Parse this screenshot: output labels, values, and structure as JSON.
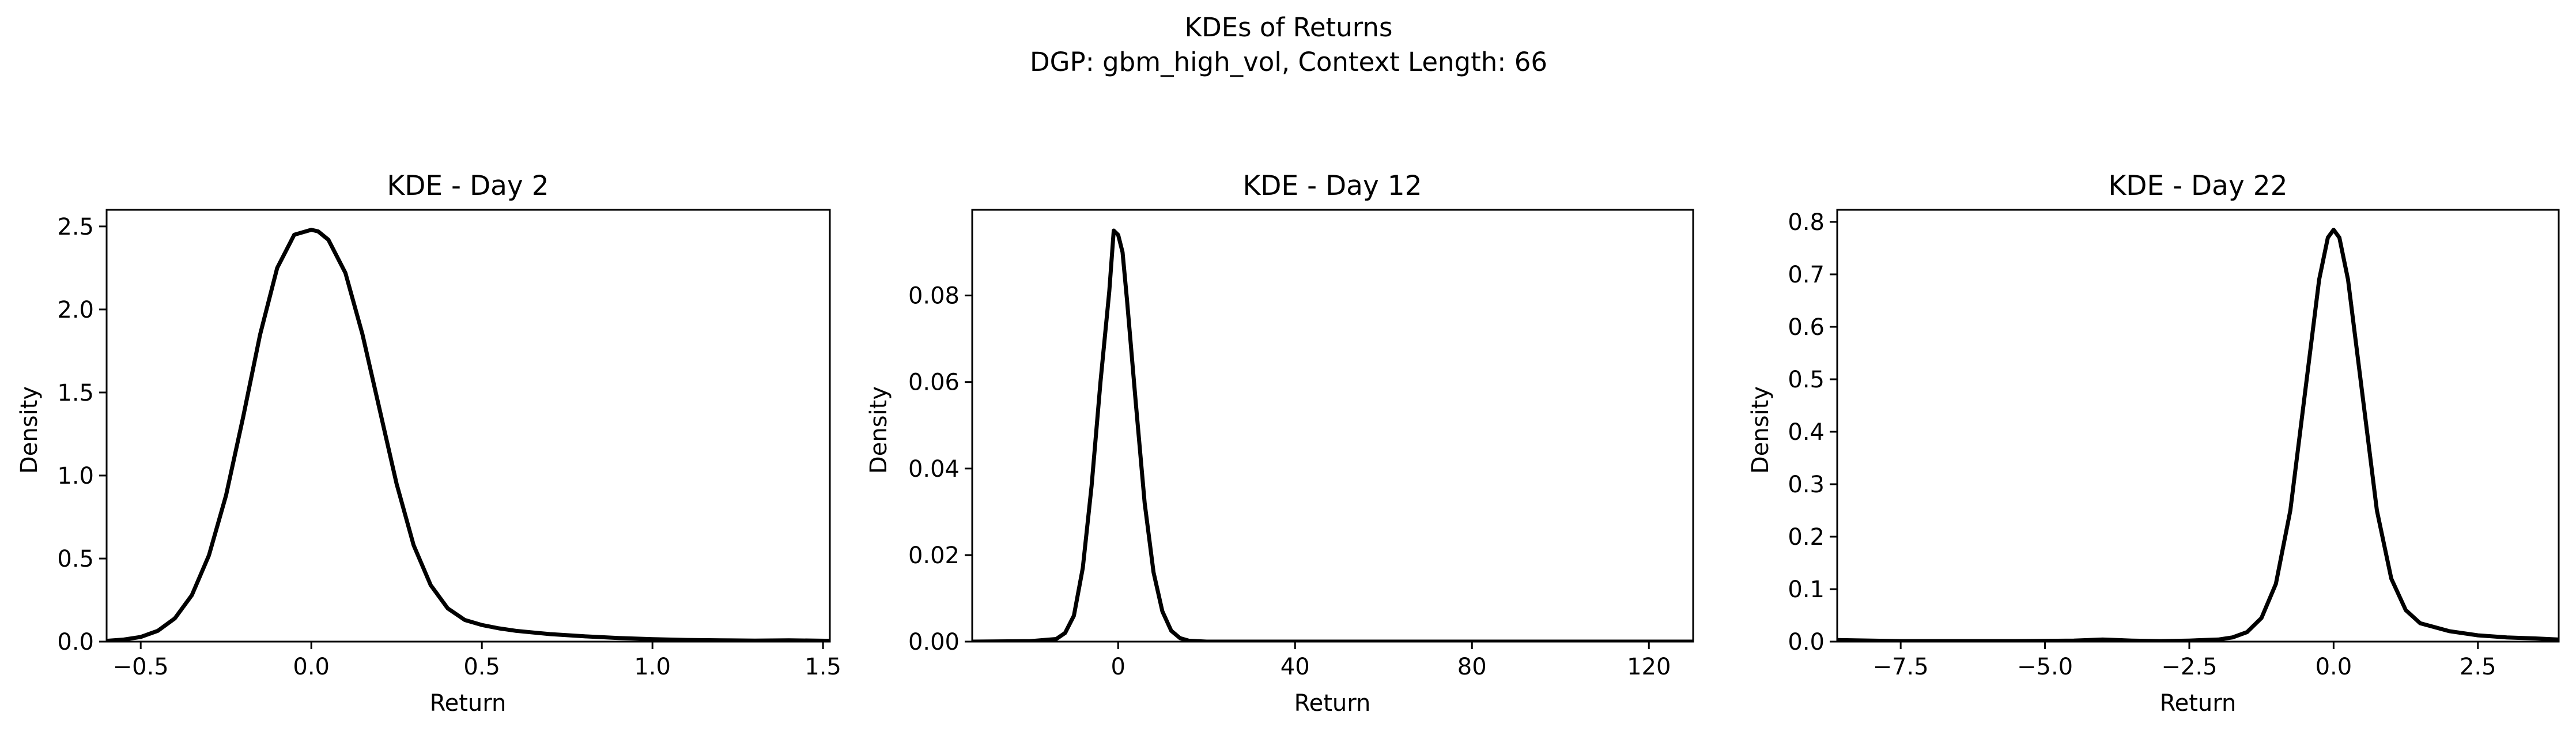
{
  "figure": {
    "suptitle_line1": "KDEs of Returns",
    "suptitle_line2": "DGP: gbm_high_vol, Context Length: 66"
  },
  "chart_data": [
    {
      "type": "line",
      "title": "KDE - Day 2",
      "xlabel": "Return",
      "ylabel": "Density",
      "xlim": [
        -0.6,
        1.52
      ],
      "ylim": [
        0,
        2.6
      ],
      "xticks": [
        -0.5,
        0.0,
        0.5,
        1.0,
        1.5
      ],
      "xtick_labels": [
        "−0.5",
        "0.0",
        "0.5",
        "1.0",
        "1.5"
      ],
      "yticks": [
        0.0,
        0.5,
        1.0,
        1.5,
        2.0,
        2.5
      ],
      "ytick_labels": [
        "0.0",
        "0.5",
        "1.0",
        "1.5",
        "2.0",
        "2.5"
      ],
      "grid": false,
      "line_color": "#000000",
      "x": [
        -0.6,
        -0.55,
        -0.5,
        -0.45,
        -0.4,
        -0.35,
        -0.3,
        -0.25,
        -0.2,
        -0.15,
        -0.1,
        -0.05,
        0.0,
        0.02,
        0.05,
        0.1,
        0.15,
        0.2,
        0.25,
        0.3,
        0.35,
        0.4,
        0.45,
        0.5,
        0.55,
        0.6,
        0.65,
        0.7,
        0.8,
        0.9,
        1.0,
        1.1,
        1.2,
        1.3,
        1.4,
        1.52
      ],
      "y": [
        0.005,
        0.012,
        0.028,
        0.065,
        0.14,
        0.28,
        0.52,
        0.88,
        1.35,
        1.85,
        2.25,
        2.45,
        2.48,
        2.47,
        2.42,
        2.22,
        1.85,
        1.4,
        0.95,
        0.58,
        0.34,
        0.2,
        0.13,
        0.1,
        0.08,
        0.065,
        0.055,
        0.045,
        0.032,
        0.022,
        0.015,
        0.01,
        0.008,
        0.006,
        0.008,
        0.005
      ]
    },
    {
      "type": "line",
      "title": "KDE - Day 12",
      "xlabel": "Return",
      "ylabel": "Density",
      "xlim": [
        -33,
        130
      ],
      "ylim": [
        0,
        0.0998
      ],
      "xticks": [
        0,
        40,
        80,
        120
      ],
      "xtick_labels": [
        "0",
        "40",
        "80",
        "120"
      ],
      "yticks": [
        0.0,
        0.02,
        0.04,
        0.06,
        0.08
      ],
      "ytick_labels": [
        "0.00",
        "0.02",
        "0.04",
        "0.06",
        "0.08"
      ],
      "grid": false,
      "line_color": "#000000",
      "x": [
        -33,
        -20,
        -14,
        -12,
        -10,
        -8,
        -6,
        -4,
        -2,
        -1,
        0,
        1,
        2,
        4,
        6,
        8,
        10,
        12,
        14,
        16,
        20,
        30,
        40,
        60,
        80,
        100,
        120,
        130
      ],
      "y": [
        0,
        0.0001,
        0.0006,
        0.002,
        0.006,
        0.017,
        0.036,
        0.06,
        0.081,
        0.095,
        0.094,
        0.09,
        0.079,
        0.055,
        0.032,
        0.016,
        0.007,
        0.0025,
        0.0008,
        0.0002,
        0,
        0,
        0,
        0,
        0,
        0,
        0,
        0
      ]
    },
    {
      "type": "line",
      "title": "KDE - Day 22",
      "xlabel": "Return",
      "ylabel": "Density",
      "xlim": [
        -8.6,
        3.9
      ],
      "ylim": [
        0,
        0.823
      ],
      "xticks": [
        -7.5,
        -5.0,
        -2.5,
        0.0,
        2.5
      ],
      "xtick_labels": [
        "−7.5",
        "−5.0",
        "−2.5",
        "0.0",
        "2.5"
      ],
      "yticks": [
        0.0,
        0.1,
        0.2,
        0.3,
        0.4,
        0.5,
        0.6,
        0.7,
        0.8
      ],
      "ytick_labels": [
        "0.0",
        "0.1",
        "0.2",
        "0.3",
        "0.4",
        "0.5",
        "0.6",
        "0.7",
        "0.8"
      ],
      "grid": false,
      "line_color": "#000000",
      "x": [
        -8.6,
        -7.5,
        -6.5,
        -5.5,
        -4.5,
        -4.0,
        -3.5,
        -3.0,
        -2.5,
        -2.0,
        -1.75,
        -1.5,
        -1.25,
        -1.0,
        -0.75,
        -0.5,
        -0.25,
        -0.1,
        0.0,
        0.1,
        0.25,
        0.5,
        0.75,
        1.0,
        1.25,
        1.5,
        2.0,
        2.5,
        3.0,
        3.5,
        3.9
      ],
      "y": [
        0.003,
        0.001,
        0.001,
        0.001,
        0.002,
        0.004,
        0.002,
        0.001,
        0.002,
        0.004,
        0.008,
        0.018,
        0.045,
        0.11,
        0.25,
        0.47,
        0.69,
        0.77,
        0.785,
        0.77,
        0.69,
        0.47,
        0.25,
        0.12,
        0.06,
        0.035,
        0.02,
        0.012,
        0.008,
        0.006,
        0.004
      ]
    }
  ]
}
